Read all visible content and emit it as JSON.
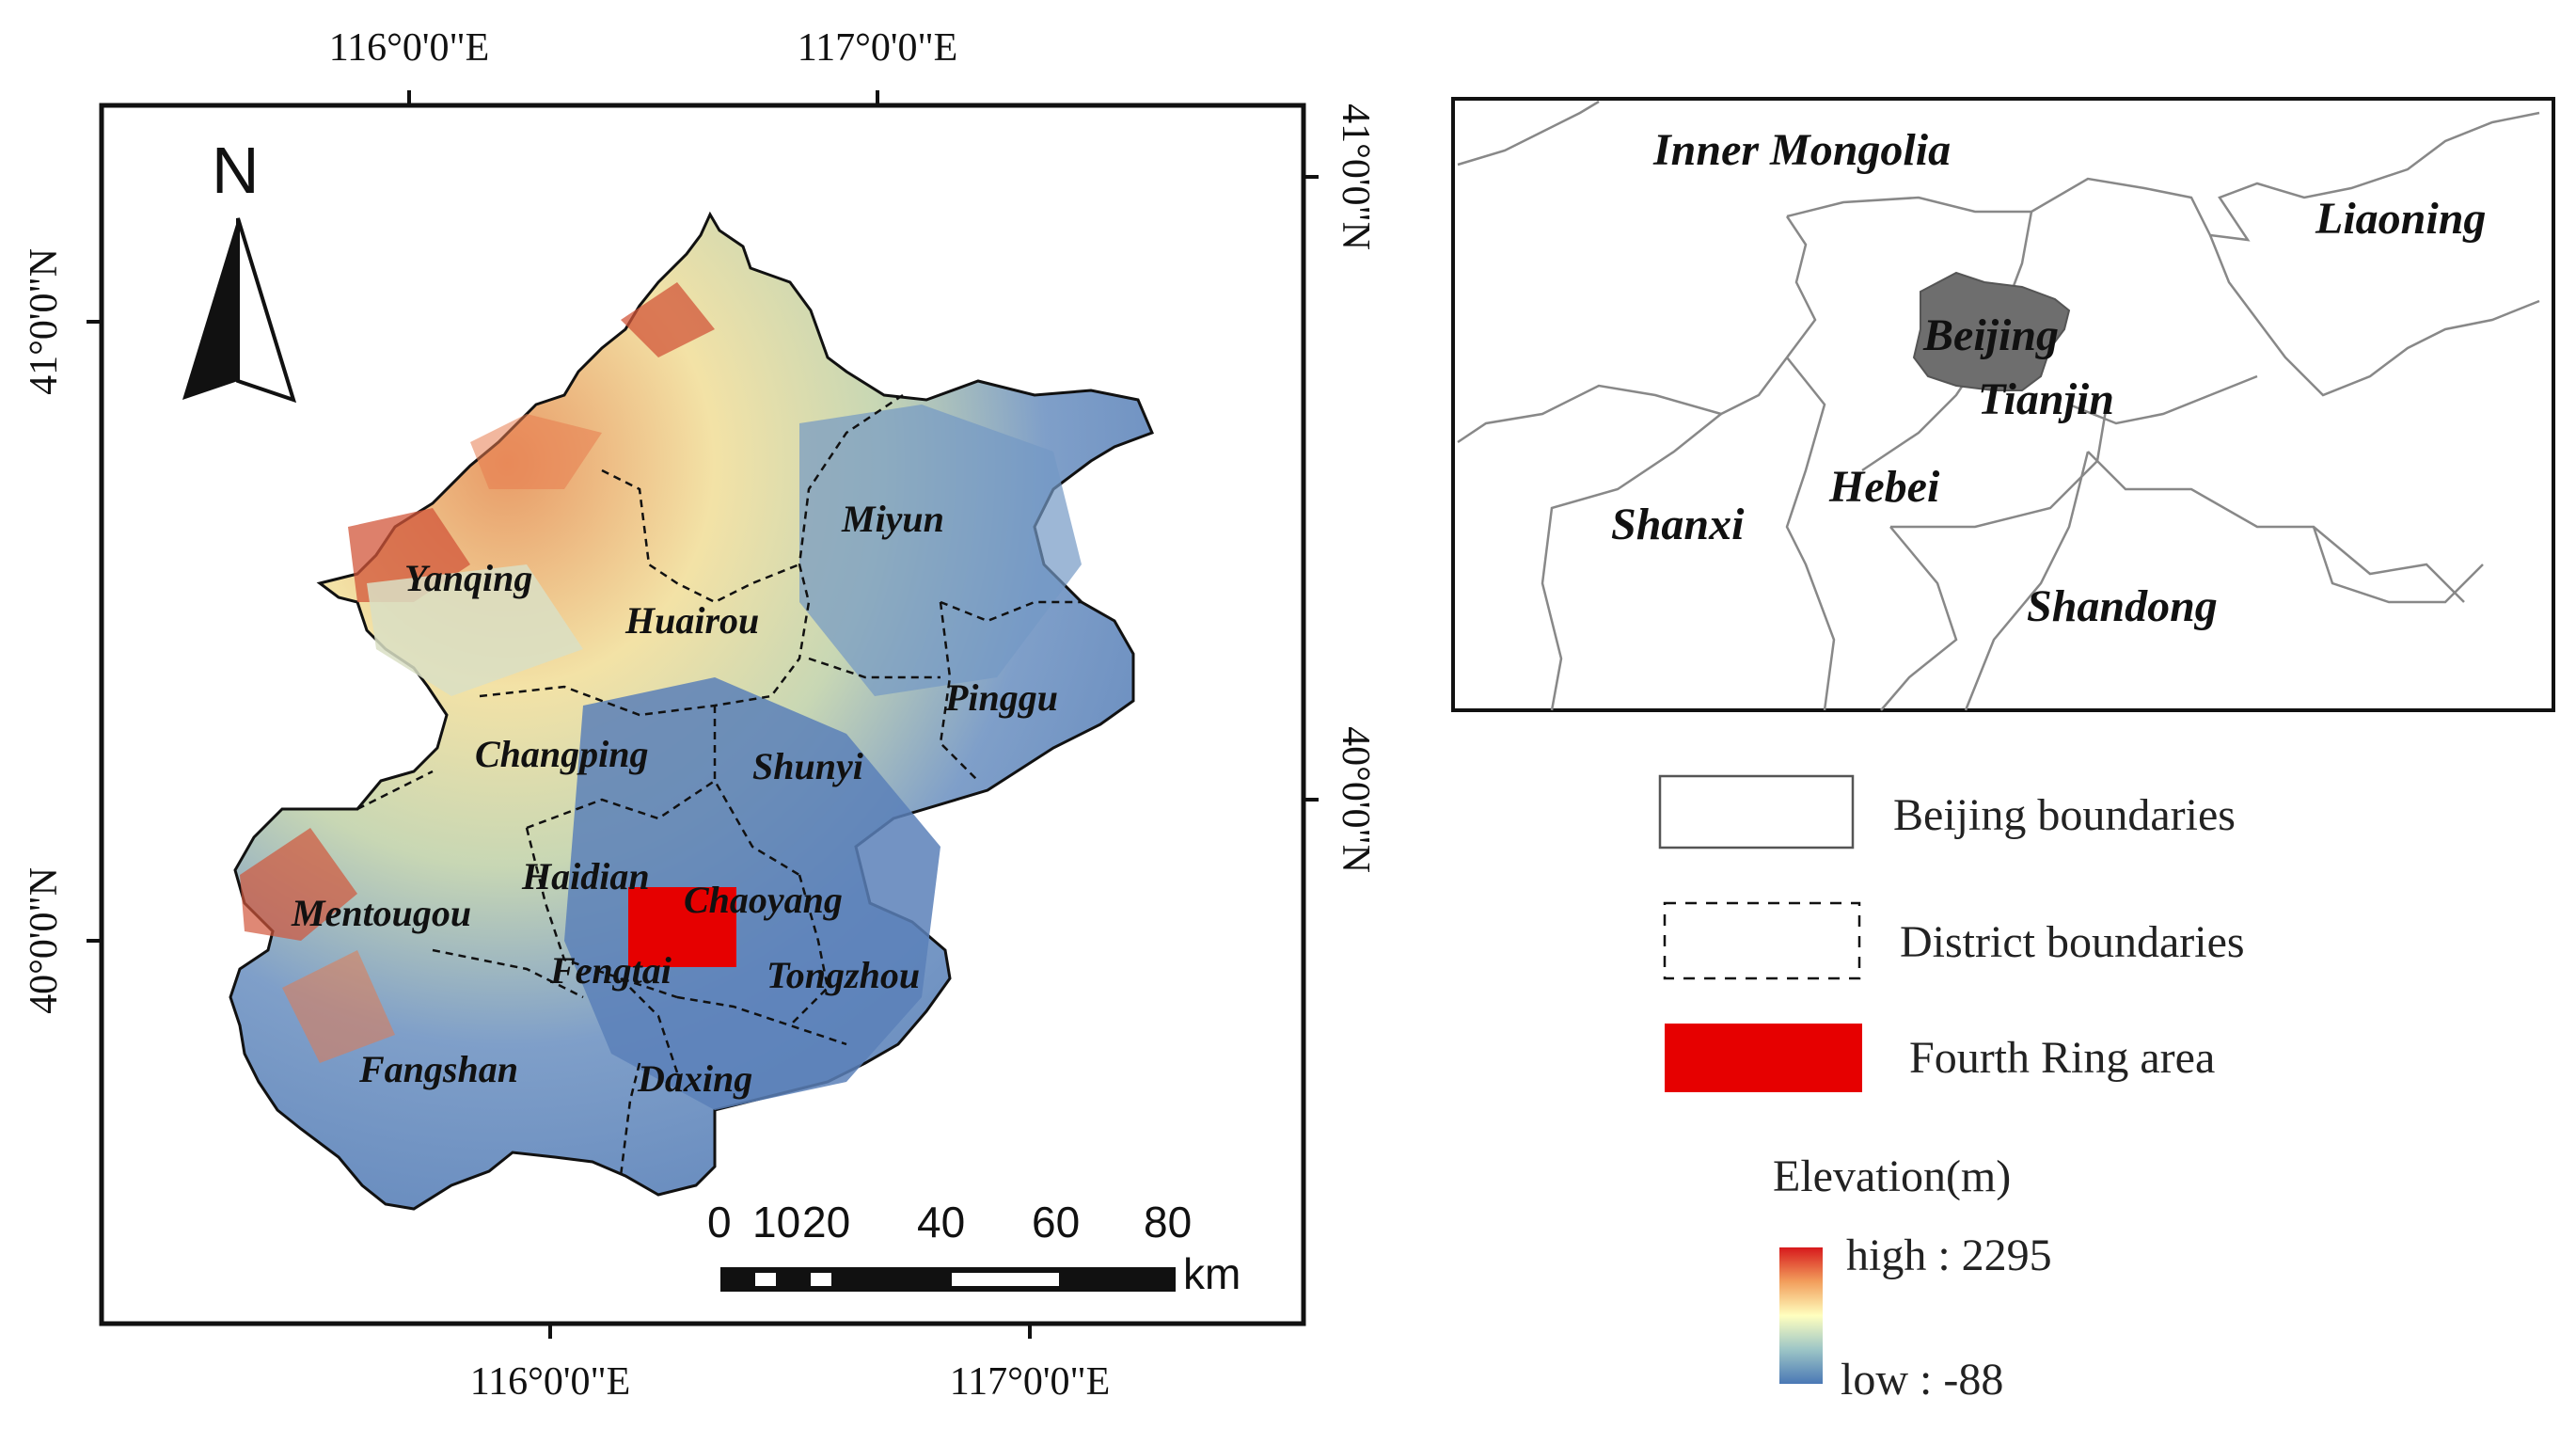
{
  "main_map": {
    "top_lon_labels": [
      "116°0'0\"E",
      "117°0'0\"E"
    ],
    "bottom_lon_labels": [
      "116°0'0\"E",
      "117°0'0\"E"
    ],
    "left_lat_labels": [
      "41°0'0\"N",
      "40°0'0\"N"
    ],
    "right_lat_labels": [
      "41°0'0\"N",
      "40°0'0\"N"
    ],
    "north_arrow": "N",
    "districts": [
      "Yanqing",
      "Huairou",
      "Miyun",
      "Pinggu",
      "Changping",
      "Shunyi",
      "Haidian",
      "Chaoyang",
      "Mentougou",
      "Fengtai",
      "Tongzhou",
      "Fangshan",
      "Daxing"
    ],
    "scale_bar": {
      "ticks": [
        "0",
        "10",
        "20",
        "40",
        "60",
        "80"
      ],
      "unit": "km"
    }
  },
  "inset_map": {
    "provinces": [
      "Inner Mongolia",
      "Liaoning",
      "Beijing",
      "Tianjin",
      "Shanxi",
      "Hebei",
      "Shandong"
    ]
  },
  "legend": {
    "items": [
      "Beijing boundaries",
      "District boundaries",
      "Fourth Ring area"
    ],
    "elevation_title": "Elevation(m)",
    "high_label": "high : 2295",
    "low_label": "low : -88"
  },
  "colors": {
    "fourth_ring": "#e60000",
    "beijing_inset": "#6e6e6e",
    "elev_high": "#d7191c",
    "elev_mid": "#ffffbf",
    "elev_low": "#2b83ba"
  }
}
